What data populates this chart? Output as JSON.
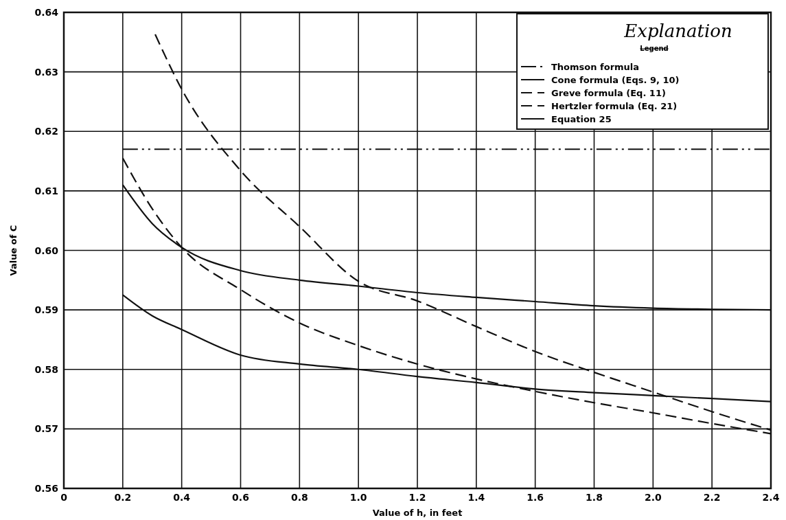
{
  "chart_data": {
    "type": "line",
    "xlabel": "Value of h, in feet",
    "ylabel": "Value of C",
    "legend_title": "Explanation",
    "annotations": [
      "Legend"
    ],
    "xlim": [
      0,
      2.4
    ],
    "xticks": [
      0,
      0.2,
      0.4,
      0.6,
      0.8,
      {
        "value": 1,
        "label": "1.0"
      },
      1.2,
      1.4,
      1.6,
      1.8,
      {
        "value": 2,
        "label": "2.0"
      },
      2.2,
      2.4
    ],
    "ylim": [
      0.56,
      0.64
    ],
    "yticks": [
      0.56,
      0.57,
      0.58,
      0.59,
      {
        "value": 0.6,
        "label": "0.60"
      },
      0.61,
      0.62,
      0.63,
      0.64
    ],
    "grid": true,
    "legend": "top right",
    "marker": "none",
    "series": [
      {
        "name": "Thomson formula",
        "color": "#111111",
        "line_style": "dotted",
        "x": [
          0.2,
          2.4
        ],
        "values": [
          0.617,
          0.617
        ]
      },
      {
        "name": "Cone formula (Eqs. 9, 10)",
        "color": "#111111",
        "line_style": "solid",
        "x": [
          0.2,
          0.3,
          0.4,
          0.6,
          0.8,
          1.0,
          1.2,
          1.4,
          1.6,
          1.8,
          2.0,
          2.2,
          2.4
        ],
        "values": [
          0.611,
          0.6045,
          0.6005,
          0.5966,
          0.595,
          0.594,
          0.5929,
          0.5921,
          0.5914,
          0.5907,
          0.5903,
          0.5901,
          0.59
        ]
      },
      {
        "name": "Greve formula (Eq. 11)",
        "color": "#111111",
        "line_style": "dashed",
        "x": [
          0.2,
          0.3,
          0.4,
          0.6,
          0.8,
          1.0,
          1.2,
          1.4,
          1.6,
          1.8,
          2.0,
          2.2,
          2.4
        ],
        "values": [
          0.6155,
          0.607,
          0.6005,
          0.5934,
          0.5878,
          0.584,
          0.5809,
          0.5784,
          0.5763,
          0.5744,
          0.5727,
          0.5709,
          0.5692
        ]
      },
      {
        "name": "Hertzler formula (Eq. 21)",
        "color": "#111111",
        "line_style": "dashed",
        "x": [
          0.31,
          0.4,
          0.6,
          0.8,
          1.0,
          1.2,
          1.4,
          1.6,
          1.8,
          2.0,
          2.2,
          2.4
        ],
        "values": [
          0.6363,
          0.6271,
          0.6134,
          0.604,
          0.5948,
          0.5915,
          0.5872,
          0.583,
          0.5795,
          0.5762,
          0.5729,
          0.5698
        ]
      },
      {
        "name": "Equation 25",
        "color": "#111111",
        "line_style": "solid",
        "x": [
          0.2,
          0.3,
          0.4,
          0.6,
          0.8,
          1.0,
          1.2,
          1.4,
          1.6,
          1.8,
          2.0,
          2.2,
          2.4
        ],
        "values": [
          0.5925,
          0.589,
          0.5867,
          0.5824,
          0.5809,
          0.58,
          0.5788,
          0.5778,
          0.5767,
          0.5761,
          0.5756,
          0.5751,
          0.5746
        ]
      }
    ]
  }
}
